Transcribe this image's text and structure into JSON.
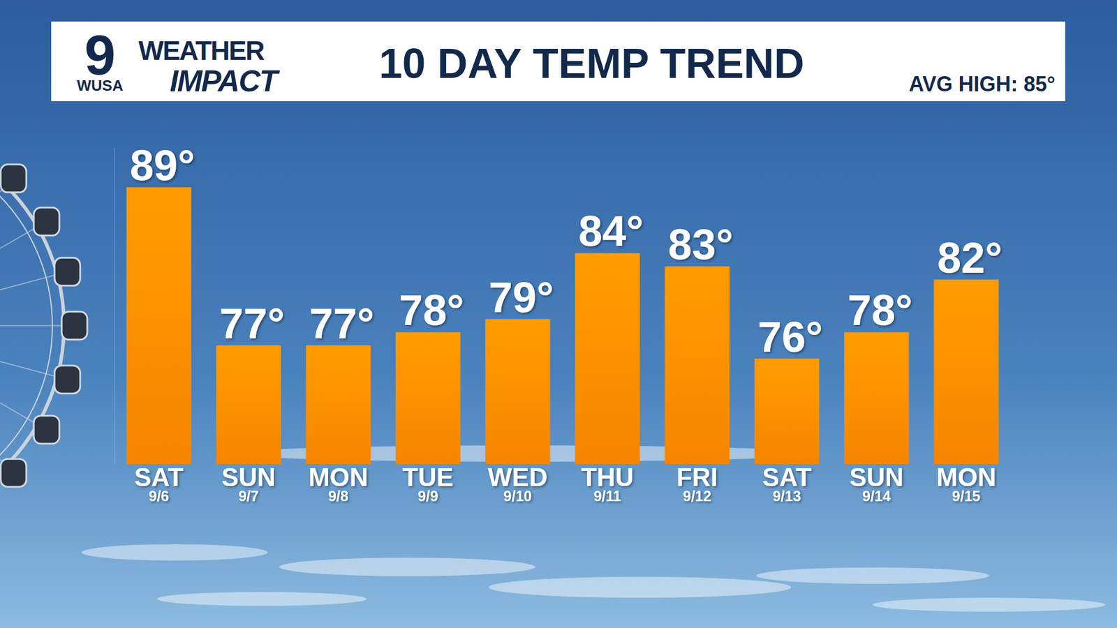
{
  "chart_data": {
    "type": "bar",
    "title": "10 DAY TEMP TREND",
    "subtitle": "AVG HIGH: 85°",
    "annotations": [
      "9",
      "WUSA",
      "WEATHER",
      "IMPACT"
    ],
    "categories": [
      "SAT 9/6",
      "SUN 9/7",
      "MON 9/8",
      "TUE 9/9",
      "WED 9/10",
      "THU 9/11",
      "FRI 9/12",
      "SAT 9/13",
      "SUN 9/14",
      "MON 9/15"
    ],
    "values": [
      89,
      77,
      77,
      78,
      79,
      84,
      83,
      76,
      78,
      82
    ],
    "value_labels": [
      "89°",
      "77°",
      "77°",
      "78°",
      "79°",
      "84°",
      "83°",
      "76°",
      "78°",
      "82°"
    ],
    "color": "#ff8a00",
    "ylim": [
      68,
      92
    ],
    "data_labels": true,
    "tick_labels": "x",
    "grid": false
  }
}
